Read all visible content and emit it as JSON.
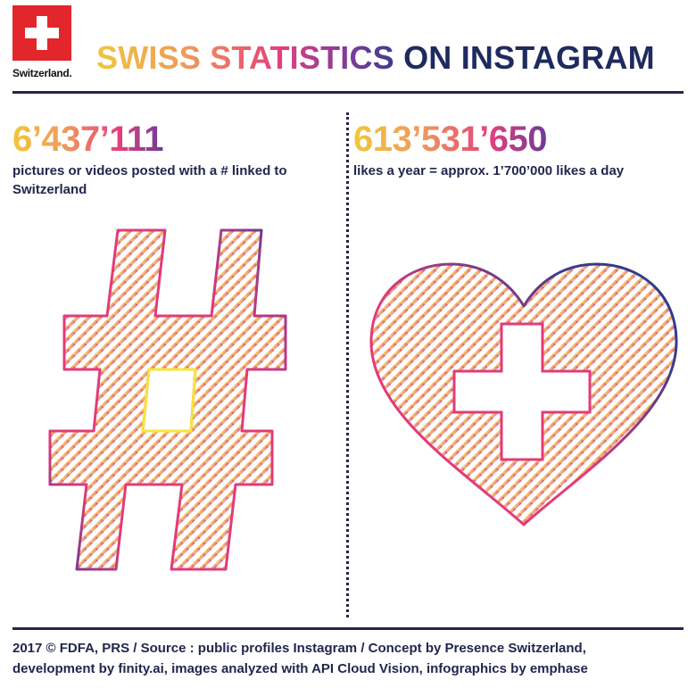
{
  "header": {
    "logo_label": "Switzerland.",
    "title_part1": "SWISS STATISTICS",
    "title_part2": " ON INSTAGRAM"
  },
  "stats": [
    {
      "number": "6’437’111",
      "description": "pictures or videos posted with a # linked to Switzerland",
      "graphic": "hashtag-icon"
    },
    {
      "number": "613’531’650",
      "description": "likes a year = approx. 1’700’000 likes a day",
      "graphic": "heart-swiss-cross-icon"
    }
  ],
  "footer": {
    "line1": "2017 © FDFA, PRS / Source : public profiles Instagram / Concept by Presence Switzerland,",
    "line2": "development by finity.ai, images analyzed with API Cloud Vision, infographics by emphase"
  },
  "colors": {
    "brand_red": "#e2262b",
    "navy": "#22264f",
    "gradient": [
      "#f5e63c",
      "#f2a05a",
      "#e5417c",
      "#3a3c8f"
    ]
  }
}
